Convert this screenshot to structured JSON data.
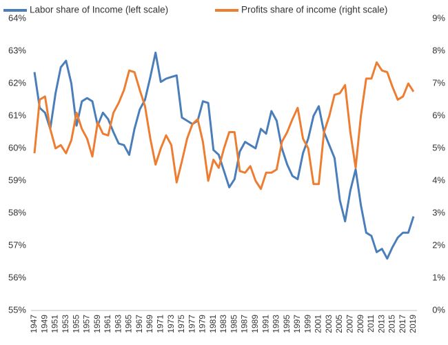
{
  "chart_data": {
    "type": "line",
    "categories": [
      "1947",
      null,
      "1949",
      null,
      "1951",
      null,
      "1953",
      null,
      "1955",
      null,
      "1957",
      null,
      "1959",
      null,
      "1961",
      null,
      "1963",
      null,
      "1965",
      null,
      "1967",
      null,
      "1969",
      null,
      "1971",
      null,
      "1973",
      null,
      "1975",
      null,
      "1977",
      null,
      "1979",
      null,
      "1981",
      null,
      "1983",
      null,
      "1985",
      null,
      "1987",
      null,
      "1989",
      null,
      "1991",
      null,
      "1993",
      null,
      "1995",
      null,
      "1997",
      null,
      "1999",
      null,
      "2001",
      null,
      "2003",
      null,
      "2005",
      null,
      "2007",
      null,
      "2009",
      null,
      "2011",
      null,
      "2013",
      null,
      "2015",
      null,
      "2017",
      null,
      "2019"
    ],
    "series": [
      {
        "name": "Labor share of Income (left scale)",
        "color": "#4a7ebb",
        "axis": "y",
        "values": [
          62.35,
          61.25,
          61.1,
          60.6,
          61.7,
          62.5,
          62.7,
          62.0,
          60.7,
          61.45,
          61.55,
          61.45,
          60.7,
          61.1,
          60.9,
          60.5,
          60.15,
          60.1,
          59.8,
          60.6,
          61.2,
          61.5,
          62.2,
          62.95,
          62.05,
          62.15,
          62.2,
          62.25,
          60.95,
          60.85,
          60.75,
          60.85,
          61.45,
          61.4,
          59.95,
          59.8,
          59.3,
          58.8,
          59.05,
          59.9,
          60.2,
          60.1,
          60.0,
          60.6,
          60.45,
          61.15,
          60.85,
          60.0,
          59.5,
          59.15,
          59.05,
          59.85,
          60.3,
          61.0,
          61.3,
          60.5,
          60.1,
          59.7,
          58.4,
          57.75,
          58.7,
          59.35,
          58.25,
          57.4,
          57.3,
          56.8,
          56.9,
          56.6,
          56.95,
          57.25,
          57.4,
          57.4,
          57.9
        ]
      },
      {
        "name": "Profits share of income (right scale)",
        "color": "#ed7d31",
        "axis": "y2",
        "values": [
          4.85,
          6.5,
          6.6,
          5.6,
          5.0,
          5.1,
          4.85,
          5.25,
          6.1,
          5.6,
          5.3,
          4.75,
          5.8,
          5.45,
          5.4,
          6.1,
          6.4,
          6.8,
          7.4,
          7.35,
          6.8,
          6.3,
          5.3,
          4.5,
          5.0,
          5.4,
          5.1,
          3.95,
          4.6,
          5.3,
          5.75,
          5.9,
          5.2,
          4.0,
          4.65,
          4.4,
          5.0,
          5.5,
          5.5,
          4.3,
          4.25,
          4.45,
          4.0,
          3.75,
          4.25,
          4.25,
          4.35,
          5.2,
          5.5,
          5.9,
          6.25,
          5.3,
          5.0,
          3.9,
          3.9,
          5.5,
          6.0,
          6.65,
          6.7,
          6.95,
          5.5,
          4.4,
          6.0,
          7.15,
          7.15,
          7.65,
          7.4,
          7.35,
          6.9,
          6.5,
          6.6,
          7.0,
          6.75
        ]
      }
    ],
    "ylim": [
      55,
      64
    ],
    "yticks": [
      {
        "value": 55,
        "label": "55%"
      },
      {
        "value": 56,
        "label": "56%"
      },
      {
        "value": 57,
        "label": "57%"
      },
      {
        "value": 58,
        "label": "58%"
      },
      {
        "value": 59,
        "label": "59%"
      },
      {
        "value": 60,
        "label": "60%"
      },
      {
        "value": 61,
        "label": "61%"
      },
      {
        "value": 62,
        "label": "62%"
      },
      {
        "value": 63,
        "label": "63%"
      },
      {
        "value": 64,
        "label": "64%"
      }
    ],
    "y2lim": [
      0,
      9
    ],
    "y2ticks": [
      {
        "value": 0,
        "label": "0%"
      },
      {
        "value": 1,
        "label": "1%"
      },
      {
        "value": 2,
        "label": "2%"
      },
      {
        "value": 3,
        "label": "3%"
      },
      {
        "value": 4,
        "label": "4%"
      },
      {
        "value": 5,
        "label": "5%"
      },
      {
        "value": 6,
        "label": "6%"
      },
      {
        "value": 7,
        "label": "7%"
      },
      {
        "value": 8,
        "label": "8%"
      },
      {
        "value": 9,
        "label": "9%"
      }
    ],
    "legend": "top"
  }
}
